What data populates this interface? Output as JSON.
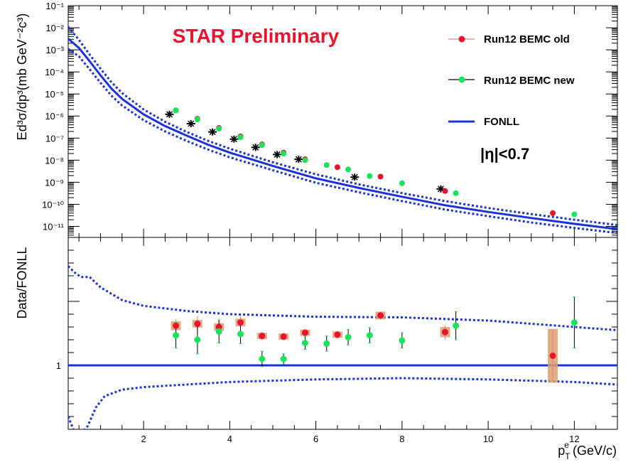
{
  "annotations": {
    "preliminary": "STAR Preliminary",
    "eta_cut": "|η|<0.7"
  },
  "legend": [
    {
      "label": "Run12 BEMC old",
      "color": "#e8132c",
      "line_color": "#f08080"
    },
    {
      "label": "Run12 BEMC new",
      "color": "#19e35a",
      "line_color": "#000000"
    },
    {
      "label": "FONLL",
      "color": "#1a32d6"
    }
  ],
  "colors": {
    "fonll": "#1a32d6",
    "old": "#e8132c",
    "new": "#19e35a",
    "syst_box": "#d9a06e",
    "black_points": "#000000"
  },
  "chart_data": [
    {
      "type": "scatter",
      "title": "",
      "xlabel": "",
      "ylabel": "Ed³σ/dp³(mb GeV⁻²c³)",
      "y_scale": "log",
      "xlim": [
        0.25,
        13.0
      ],
      "ylim_exp": [
        -11.5,
        -1.0
      ],
      "y_tick_labels": [
        "10⁻¹",
        "10⁻²",
        "10⁻³",
        "10⁻⁴",
        "10⁻⁵",
        "10⁻⁶",
        "10⁻⁷",
        "10⁻⁸",
        "10⁻⁹",
        "10⁻¹⁰",
        "10⁻¹¹"
      ],
      "grid": false,
      "series": [
        {
          "name": "Run12 BEMC old",
          "x": [
            2.75,
            3.25,
            3.75,
            4.25,
            4.75,
            5.25,
            5.75,
            6.5,
            7.5,
            9.0,
            11.5
          ],
          "y": [
            1.8e-06,
            7.5e-07,
            2.9e-07,
            1.2e-07,
            5.2e-08,
            2.2e-08,
            1.1e-08,
            4.8e-09,
            1.8e-09,
            4e-10,
            4e-11
          ]
        },
        {
          "name": "Run12 BEMC new",
          "x": [
            2.75,
            3.25,
            3.75,
            4.25,
            4.75,
            5.25,
            5.75,
            6.25,
            6.75,
            7.25,
            8.0,
            9.25,
            12.0
          ],
          "y": [
            1.8e-06,
            7e-07,
            2.7e-07,
            1.1e-07,
            4.8e-08,
            2e-08,
            1e-08,
            6e-09,
            3.8e-09,
            1.9e-09,
            9e-10,
            3.2e-10,
            3.5e-11
          ]
        },
        {
          "name": "",
          "x": [
            2.6,
            3.1,
            3.6,
            4.1,
            4.6,
            5.1,
            5.6,
            6.9,
            8.9
          ],
          "y": [
            1.2e-06,
            4.5e-07,
            1.9e-07,
            9e-08,
            3.8e-08,
            1.8e-08,
            1.1e-08,
            1.7e-09,
            5e-10
          ]
        }
      ],
      "fonll": {
        "x": [
          0.25,
          0.5,
          0.75,
          1.0,
          1.25,
          1.5,
          2.0,
          2.5,
          3.0,
          3.5,
          4.0,
          5.0,
          6.0,
          7.0,
          8.0,
          9.0,
          10.0,
          11.0,
          12.0,
          13.0
        ],
        "central": [
          0.0032,
          0.0012,
          0.0003,
          7e-05,
          1.8e-05,
          6e-06,
          1.2e-06,
          3.5e-07,
          1.3e-07,
          5e-08,
          2.2e-08,
          5.5e-09,
          1.5e-09,
          5.5e-10,
          2.2e-10,
          9e-11,
          4.5e-11,
          2.4e-11,
          1.3e-11,
          7.5e-12
        ],
        "upper": [
          0.011,
          0.0028,
          0.0006,
          0.00014,
          3.5e-05,
          1.1e-05,
          2e-06,
          5.5e-07,
          1.9e-07,
          7.5e-08,
          3.3e-08,
          8e-09,
          2.3e-09,
          8e-10,
          3.2e-10,
          1.4e-10,
          6.8e-11,
          3.6e-11,
          2e-11,
          1.15e-11
        ],
        "lower": [
          0.0011,
          0.0005,
          0.00013,
          3.2e-05,
          8.5e-06,
          3e-06,
          6.5e-07,
          2e-07,
          7.5e-08,
          3e-08,
          1.35e-08,
          3.5e-09,
          9.5e-10,
          3.5e-10,
          1.4e-10,
          5.8e-11,
          2.9e-11,
          1.5e-11,
          8.5e-12,
          5e-12
        ]
      }
    },
    {
      "type": "scatter",
      "title": "",
      "xlabel": "p_T^e (GeV/c)",
      "xlabel_main": "p",
      "xlabel_sub": "T",
      "xlabel_sup": "e",
      "xlabel_unit": " (GeV/c)",
      "ylabel": "Data/FONLL",
      "xlim": [
        0.25,
        13.0
      ],
      "ylim": [
        0.0,
        3.0
      ],
      "x_ticks": [
        2,
        4,
        6,
        8,
        10,
        12
      ],
      "y_ticks": [
        1
      ],
      "grid": false,
      "reference_line": 1.0,
      "series": [
        {
          "name": "Run12 BEMC old",
          "x": [
            2.75,
            3.25,
            3.75,
            4.25,
            4.75,
            5.25,
            5.75,
            6.5,
            7.5,
            9.0,
            11.5
          ],
          "y": [
            1.62,
            1.65,
            1.6,
            1.67,
            1.46,
            1.45,
            1.51,
            1.48,
            1.78,
            1.52,
            1.15
          ],
          "syst": [
            0.07,
            0.06,
            0.06,
            0.06,
            0.05,
            0.05,
            0.05,
            0.05,
            0.06,
            0.08,
            0.42
          ],
          "stat": [
            0.1,
            0.12,
            0.1,
            0.1,
            0.06,
            0.06,
            0.06,
            0.06,
            0.06,
            0.11,
            0.4
          ]
        },
        {
          "name": "Run12 BEMC new",
          "x": [
            2.75,
            3.25,
            3.75,
            4.25,
            4.75,
            5.25,
            5.75,
            6.25,
            6.75,
            7.25,
            8.0,
            9.25,
            12.0
          ],
          "y": [
            1.47,
            1.4,
            1.53,
            1.49,
            1.1,
            1.1,
            1.35,
            1.34,
            1.44,
            1.47,
            1.39,
            1.62,
            1.67
          ],
          "stat": [
            0.2,
            0.22,
            0.18,
            0.15,
            0.12,
            0.08,
            0.1,
            0.12,
            0.12,
            0.12,
            0.12,
            0.22,
            0.4
          ]
        }
      ],
      "fonll_upper": {
        "x": [
          0.25,
          0.4,
          0.55,
          0.75,
          1.0,
          1.5,
          2.0,
          3.0,
          4.0,
          6.0,
          8.0,
          10.0,
          12.0,
          13.0
        ],
        "y": [
          2.55,
          2.45,
          2.38,
          2.38,
          2.22,
          2.02,
          1.93,
          1.85,
          1.8,
          1.76,
          1.75,
          1.7,
          1.6,
          1.55
        ]
      },
      "fonll_lower": {
        "x": [
          0.25,
          0.4,
          0.5,
          0.7,
          0.9,
          1.1,
          1.5,
          2.0,
          3.0,
          4.0,
          6.0,
          8.0,
          10.0,
          12.0,
          13.0
        ],
        "y": [
          0.2,
          -0.05,
          -0.1,
          0.05,
          0.35,
          0.52,
          0.62,
          0.66,
          0.7,
          0.74,
          0.78,
          0.8,
          0.78,
          0.74,
          0.7
        ]
      }
    }
  ]
}
